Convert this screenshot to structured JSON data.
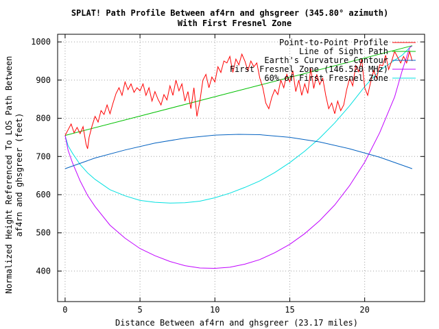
{
  "chart_data": {
    "type": "line",
    "title": "SPLAT! Path Profile Between af4rn and ghsgreer (345.80° azimuth)",
    "subtitle": "With First Fresnel Zone",
    "xlabel": "Distance Between af4rn and ghsgreer (23.17 miles)",
    "ylabel": "Normalized Height Referenced To LOS Path Between af4rn and ghsgreer (feet)",
    "ylabel_lines": [
      "Normalized Height Referenced To LOS Path Between",
      "af4rn and ghsgreer (feet)"
    ],
    "xlim": [
      -0.5,
      24
    ],
    "ylim": [
      320,
      1020
    ],
    "xticks": [
      0,
      5,
      10,
      15,
      20
    ],
    "yticks": [
      400,
      500,
      600,
      700,
      800,
      900,
      1000
    ],
    "grid": true,
    "legend_position": "top-right",
    "series": [
      {
        "name": "Point-to-Point Profile",
        "color": "#ff0000",
        "x": [
          0,
          0.2,
          0.4,
          0.6,
          0.8,
          1.0,
          1.2,
          1.4,
          1.5,
          1.6,
          1.8,
          2.0,
          2.2,
          2.4,
          2.6,
          2.8,
          3.0,
          3.2,
          3.4,
          3.6,
          3.8,
          4.0,
          4.2,
          4.4,
          4.6,
          4.8,
          5.0,
          5.2,
          5.4,
          5.6,
          5.8,
          6.0,
          6.2,
          6.4,
          6.6,
          6.8,
          7.0,
          7.2,
          7.4,
          7.6,
          7.8,
          8.0,
          8.2,
          8.4,
          8.6,
          8.8,
          9.0,
          9.2,
          9.4,
          9.6,
          9.8,
          10.0,
          10.2,
          10.4,
          10.6,
          10.8,
          11.0,
          11.2,
          11.4,
          11.6,
          11.8,
          12.0,
          12.2,
          12.4,
          12.6,
          12.8,
          13.0,
          13.2,
          13.4,
          13.6,
          13.8,
          14.0,
          14.2,
          14.4,
          14.6,
          14.8,
          15.0,
          15.2,
          15.4,
          15.6,
          15.8,
          16.0,
          16.2,
          16.4,
          16.6,
          16.8,
          17.0,
          17.2,
          17.4,
          17.6,
          17.8,
          18.0,
          18.2,
          18.4,
          18.6,
          18.8,
          19.0,
          19.2,
          19.4,
          19.6,
          19.8,
          20.0,
          20.2,
          20.4,
          20.6,
          20.8,
          21.0,
          21.2,
          21.4,
          21.6,
          21.8,
          22.0,
          22.2,
          22.4,
          22.6,
          22.8,
          23.0,
          23.17
        ],
        "y": [
          755,
          770,
          785,
          762,
          776,
          760,
          778,
          732,
          720,
          750,
          780,
          805,
          790,
          820,
          810,
          835,
          812,
          840,
          865,
          880,
          860,
          895,
          875,
          890,
          868,
          880,
          872,
          890,
          860,
          880,
          845,
          870,
          850,
          835,
          862,
          848,
          885,
          860,
          900,
          872,
          890,
          845,
          870,
          825,
          880,
          805,
          845,
          900,
          915,
          880,
          908,
          895,
          935,
          920,
          950,
          945,
          962,
          920,
          955,
          940,
          968,
          950,
          925,
          950,
          935,
          945,
          905,
          880,
          840,
          825,
          855,
          875,
          862,
          900,
          880,
          915,
          895,
          925,
          870,
          900,
          860,
          890,
          865,
          930,
          878,
          915,
          888,
          905,
          860,
          825,
          840,
          812,
          845,
          820,
          835,
          875,
          905,
          885,
          938,
          922,
          955,
          880,
          860,
          895,
          925,
          905,
          940,
          938,
          965,
          928,
          950,
          975,
          960,
          945,
          962,
          945,
          975,
          950
        ]
      },
      {
        "name": "Line of Sight Path",
        "color": "#00c000",
        "x": [
          0,
          23.17
        ],
        "y": [
          755,
          990
        ]
      },
      {
        "name": "Earth's Curvature Contour",
        "color": "#0060c0",
        "x": [
          0,
          2,
          4,
          6,
          8,
          10,
          11.585,
          13,
          15,
          17,
          19,
          21,
          23.17
        ],
        "y": [
          668,
          696,
          717,
          735,
          748,
          756,
          758,
          757,
          750,
          738,
          720,
          698,
          668
        ]
      },
      {
        "name": "First Fresnel Zone (146.520 MHz)",
        "color": "#c000ff",
        "x": [
          0,
          0.2,
          0.5,
          1,
          1.5,
          2,
          3,
          4,
          5,
          6,
          7,
          8,
          9,
          10,
          11,
          12,
          13,
          14,
          15,
          16,
          17,
          18,
          19,
          20,
          21,
          22,
          22.5,
          23,
          23.17
        ],
        "y": [
          755,
          716,
          683,
          636,
          598,
          569,
          520,
          486,
          459,
          440,
          425,
          414,
          408,
          407,
          410,
          418,
          430,
          448,
          470,
          498,
          532,
          573,
          624,
          685,
          762,
          856,
          924,
          985,
          990
        ]
      },
      {
        "name": "60% of First Fresnel Zone",
        "color": "#00e0e0",
        "x": [
          0,
          0.2,
          0.5,
          1,
          1.5,
          2,
          3,
          4,
          5,
          6,
          7,
          8,
          9,
          10,
          11,
          12,
          13,
          14,
          15,
          16,
          17,
          18,
          19,
          20,
          21,
          22,
          22.5,
          23,
          23.17
        ],
        "y": [
          755,
          728,
          708,
          679,
          657,
          640,
          613,
          597,
          585,
          580,
          578,
          579,
          583,
          592,
          604,
          619,
          636,
          658,
          684,
          714,
          748,
          788,
          833,
          883,
          925,
          952,
          965,
          985,
          990
        ]
      }
    ]
  }
}
